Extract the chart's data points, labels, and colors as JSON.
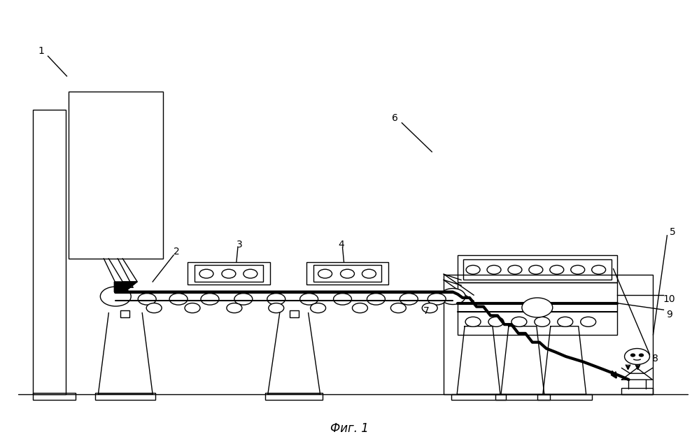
{
  "title": "Фиг. 1",
  "bg_color": "#ffffff",
  "line_color": "#000000"
}
